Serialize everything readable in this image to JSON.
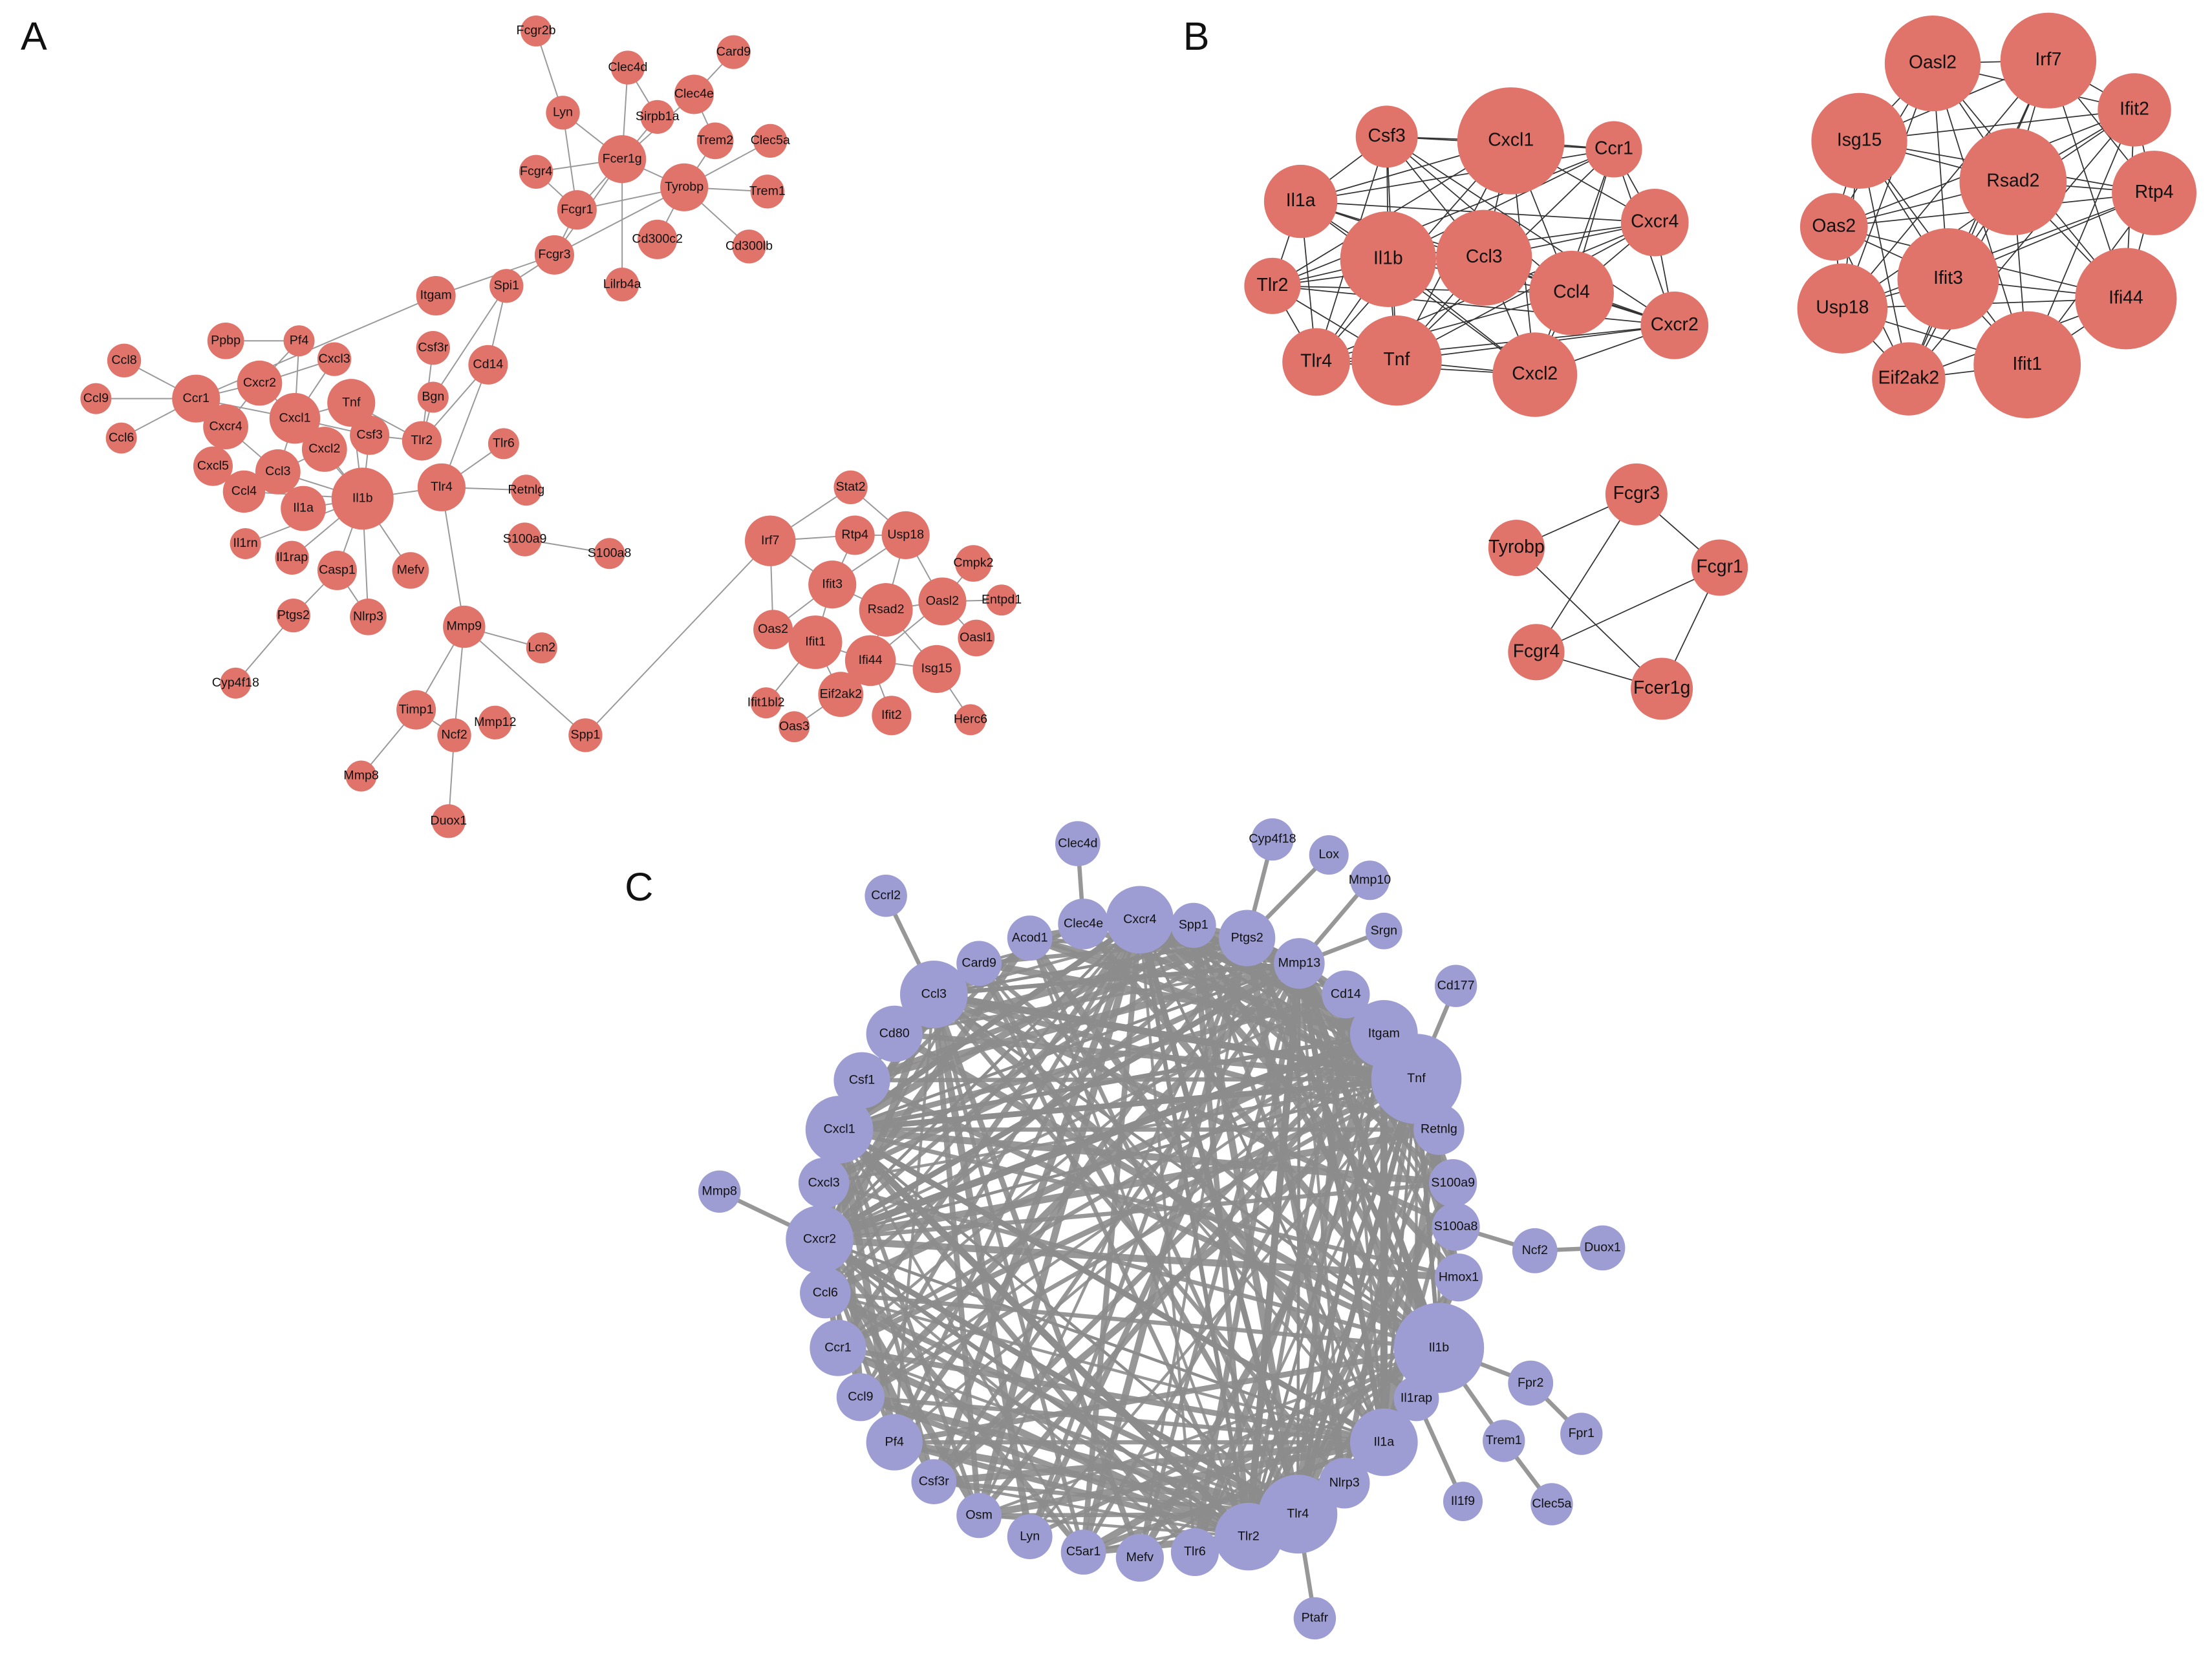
{
  "panels": [
    {
      "label": "A",
      "nodes": [
        "Fcgr2b",
        "Clec4d",
        "Card9",
        "Lyn",
        "Clec4e",
        "Sirpb1a",
        "Clec5a",
        "Fcgr4",
        "Fcer1g",
        "Trem2",
        "Tyrobp",
        "Trem1",
        "Fcgr1",
        "Cd300c2",
        "Cd300lb",
        "Fcgr3",
        "Lilrb4a",
        "Itgam",
        "Spi1",
        "Pf4",
        "Ppbp",
        "Cxcl3",
        "Csf3r",
        "Ccl8",
        "Cd14",
        "Ccr1",
        "Cxcr2",
        "Tnf",
        "Bgn",
        "Ccl9",
        "Cxcl1",
        "Cxcr4",
        "Csf3",
        "Tlr2",
        "Tlr6",
        "Ccl6",
        "Cxcl2",
        "Cxcl5",
        "Ccl3",
        "Tlr4",
        "Retnlg",
        "Ccl4",
        "Il1b",
        "Il1a",
        "S100a9",
        "S100a8",
        "Il1rn",
        "Il1rap",
        "Casp1",
        "Mefv",
        "Nlrp3",
        "Ptgs2",
        "Mmp9",
        "Lcn2",
        "Cyp4f18",
        "Timp1",
        "Ncf2",
        "Mmp12",
        "Spp1",
        "Mmp8",
        "Duox1",
        "Stat2",
        "Irf7",
        "Rtp4",
        "Usp18",
        "Cmpk2",
        "Ifit3",
        "Rsad2",
        "Oasl2",
        "Entpd1",
        "Oas2",
        "Ifit1",
        "Oasl1",
        "Ifi44",
        "Isg15",
        "Ifit1bl2",
        "Eif2ak2",
        "Ifit2",
        "Herc6",
        "Oas3"
      ]
    },
    {
      "label": "B",
      "nodes": [
        "Csf3",
        "Cxcl1",
        "Ccr1",
        "Il1a",
        "Cxcr4",
        "Il1b",
        "Ccl3",
        "Ccl4",
        "Tlr2",
        "Cxcr2",
        "Tlr4",
        "Tnf",
        "Cxcl2",
        "Oasl2",
        "Irf7",
        "Ifit2",
        "Isg15",
        "Rsad2",
        "Rtp4",
        "Oas2",
        "Ifit3",
        "Ifi44",
        "Usp18",
        "Eif2ak2",
        "Ifit1",
        "Fcgr3",
        "Tyrobp",
        "Fcgr1",
        "Fcgr4",
        "Fcer1g"
      ]
    },
    {
      "label": "C",
      "nodes": [
        "Clec4d",
        "Ccrl2",
        "Cxcr4",
        "Spp1",
        "Clec4e",
        "Acod1",
        "Card9",
        "Ptgs2",
        "Cyp4f18",
        "Lox",
        "Mmp10",
        "Srgn",
        "Mmp13",
        "Ccl3",
        "Cd14",
        "Cd177",
        "Cd80",
        "Itgam",
        "Tnf",
        "Csf1",
        "Cxcl1",
        "Retnlg",
        "Cxcl3",
        "S100a9",
        "Mmp8",
        "S100a8",
        "Cxcr2",
        "Ncf2",
        "Duox1",
        "Hmox1",
        "Ccl6",
        "Il1b",
        "Ccr1",
        "Fpr2",
        "Il1rap",
        "Ccl9",
        "Fpr1",
        "Trem1",
        "Il1a",
        "Pf4",
        "Nlrp3",
        "Csf3r",
        "Il1f9",
        "Clec5a",
        "Tlr4",
        "Osm",
        "Lyn",
        "Tlr2",
        "C5ar1",
        "Mefv",
        "Tlr6",
        "Ptafr"
      ]
    }
  ]
}
